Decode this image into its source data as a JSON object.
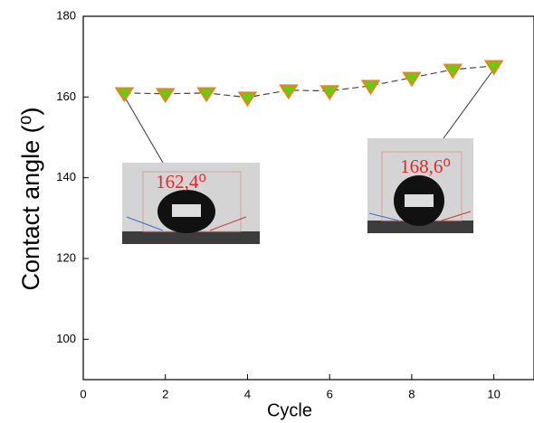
{
  "chart_data": {
    "type": "line",
    "x_label": "Cycle",
    "y_label": "Contact angle (⁰)",
    "x": [
      1,
      2,
      3,
      4,
      5,
      6,
      7,
      8,
      9,
      10
    ],
    "values": [
      161.0,
      160.8,
      161.0,
      159.9,
      161.7,
      161.5,
      162.8,
      164.8,
      166.8,
      167.7
    ],
    "color": "#66cc11",
    "line_color": "#444444",
    "line_style": "dashed",
    "xlim": [
      0,
      11
    ],
    "xticks": [
      0,
      2,
      4,
      6,
      8,
      10
    ],
    "ylim": [
      90,
      180
    ],
    "yticks": [
      100,
      120,
      140,
      160,
      180
    ],
    "annotations": [
      "162,4⁰",
      "168,6⁰"
    ]
  }
}
